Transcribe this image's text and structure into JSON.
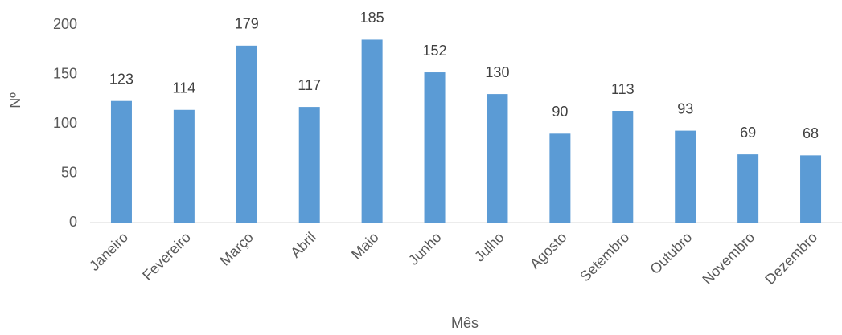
{
  "chart_data": {
    "type": "bar",
    "categories": [
      "Janeiro",
      "Fevereiro",
      "Março",
      "Abril",
      "Maio",
      "Junho",
      "Julho",
      "Agosto",
      "Setembro",
      "Outubro",
      "Novembro",
      "Dezembro"
    ],
    "values": [
      123,
      114,
      179,
      117,
      185,
      152,
      130,
      90,
      113,
      93,
      69,
      68
    ],
    "color": "#5b9bd5",
    "ylim": [
      0,
      200
    ],
    "yticks": [
      0,
      50,
      100,
      150,
      200
    ],
    "grid": false,
    "y_label": "Nº",
    "x_label": "Mês"
  }
}
